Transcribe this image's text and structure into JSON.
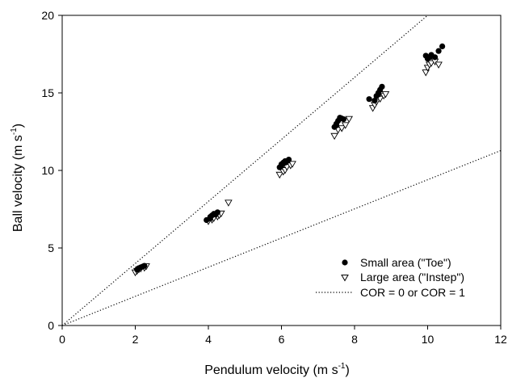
{
  "chart_data": {
    "type": "scatter",
    "xlabel": "Pendulum velocity (m s",
    "xlabel_sup": "-1",
    "xlabel_end": ")",
    "ylabel": "Ball velocity (m s",
    "ylabel_sup": "-1",
    "ylabel_end": ")",
    "xlim": [
      0,
      12
    ],
    "ylim": [
      0,
      20
    ],
    "x_ticks": [
      "0",
      "2",
      "4",
      "6",
      "8",
      "10",
      "12"
    ],
    "y_ticks": [
      "0",
      "5",
      "10",
      "15",
      "20"
    ],
    "legend_position": "bottom-right",
    "series": [
      {
        "name": "Small area (\"Toe\")",
        "marker": "filled-circle",
        "color": "#000000",
        "points": [
          [
            2.05,
            3.6
          ],
          [
            2.1,
            3.7
          ],
          [
            2.15,
            3.75
          ],
          [
            2.2,
            3.8
          ],
          [
            2.25,
            3.85
          ],
          [
            3.95,
            6.8
          ],
          [
            4.05,
            7.0
          ],
          [
            4.1,
            7.1
          ],
          [
            4.15,
            7.2
          ],
          [
            4.25,
            7.3
          ],
          [
            4.05,
            6.9
          ],
          [
            4.2,
            7.15
          ],
          [
            5.95,
            10.2
          ],
          [
            6.0,
            10.4
          ],
          [
            6.05,
            10.5
          ],
          [
            6.1,
            10.6
          ],
          [
            6.15,
            10.6
          ],
          [
            6.2,
            10.7
          ],
          [
            6.0,
            10.3
          ],
          [
            6.1,
            10.5
          ],
          [
            7.45,
            12.8
          ],
          [
            7.5,
            13.0
          ],
          [
            7.55,
            13.2
          ],
          [
            7.6,
            13.4
          ],
          [
            7.7,
            13.3
          ],
          [
            7.5,
            12.9
          ],
          [
            7.65,
            13.35
          ],
          [
            8.4,
            14.6
          ],
          [
            8.55,
            14.5
          ],
          [
            8.6,
            14.8
          ],
          [
            8.65,
            15.0
          ],
          [
            8.7,
            15.2
          ],
          [
            8.75,
            15.4
          ],
          [
            8.65,
            14.9
          ],
          [
            9.95,
            17.4
          ],
          [
            10.0,
            17.2
          ],
          [
            10.05,
            17.3
          ],
          [
            10.1,
            17.45
          ],
          [
            10.2,
            17.3
          ],
          [
            10.3,
            17.7
          ],
          [
            10.4,
            18.0
          ]
        ]
      },
      {
        "name": "Large area (\"Instep\")",
        "marker": "open-triangle-down",
        "color": "#000000",
        "points": [
          [
            2.0,
            3.4
          ],
          [
            2.05,
            3.5
          ],
          [
            2.1,
            3.6
          ],
          [
            2.15,
            3.65
          ],
          [
            2.25,
            3.7
          ],
          [
            2.3,
            3.8
          ],
          [
            4.0,
            6.7
          ],
          [
            4.1,
            6.8
          ],
          [
            4.15,
            6.9
          ],
          [
            4.25,
            7.0
          ],
          [
            4.3,
            7.1
          ],
          [
            4.35,
            7.2
          ],
          [
            4.55,
            7.9
          ],
          [
            5.95,
            9.7
          ],
          [
            6.05,
            9.9
          ],
          [
            6.1,
            10.0
          ],
          [
            6.15,
            10.2
          ],
          [
            6.25,
            10.3
          ],
          [
            6.3,
            10.4
          ],
          [
            7.45,
            12.2
          ],
          [
            7.55,
            12.6
          ],
          [
            7.65,
            12.7
          ],
          [
            7.75,
            12.9
          ],
          [
            7.85,
            13.3
          ],
          [
            8.5,
            14.0
          ],
          [
            8.55,
            14.2
          ],
          [
            8.6,
            14.4
          ],
          [
            8.7,
            14.6
          ],
          [
            8.8,
            14.8
          ],
          [
            8.85,
            14.9
          ],
          [
            9.95,
            16.3
          ],
          [
            10.0,
            16.6
          ],
          [
            10.05,
            16.8
          ],
          [
            10.1,
            16.9
          ],
          [
            10.2,
            17.0
          ],
          [
            10.3,
            16.8
          ]
        ]
      },
      {
        "name": "COR = 0 or COR = 1",
        "marker": "dotted-line",
        "color": "#000000",
        "lines": [
          {
            "slope": 2.0
          },
          {
            "slope": 0.94
          }
        ]
      }
    ]
  }
}
